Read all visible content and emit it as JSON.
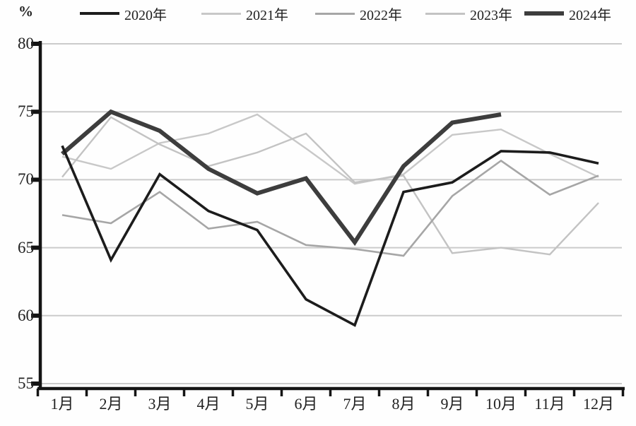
{
  "chart_data": {
    "type": "line",
    "title": "",
    "unit_label": "%",
    "xlabel": "",
    "ylabel": "%",
    "x_categories": [
      "1月",
      "2月",
      "3月",
      "4月",
      "5月",
      "6月",
      "7月",
      "8月",
      "9月",
      "10月",
      "11月",
      "12月"
    ],
    "y_ticks": [
      80,
      75,
      70,
      65,
      60,
      55
    ],
    "ylim": [
      55,
      80
    ],
    "grid": "horizontal",
    "legend_position": "top",
    "colors": {
      "axis": "#141414",
      "gridline": "#cbcbcb",
      "text": "#222222"
    },
    "series": [
      {
        "name": "2020年",
        "color": "#1c1c1c",
        "values": [
          72.5,
          64.1,
          70.4,
          67.7,
          66.3,
          61.2,
          59.3,
          69.1,
          69.8,
          72.1,
          72.0,
          71.2
        ]
      },
      {
        "name": "2021年",
        "color": "#c8c8c8",
        "values": [
          71.7,
          70.8,
          72.7,
          73.4,
          74.8,
          72.3,
          69.7,
          70.4,
          73.3,
          73.7,
          71.9,
          70.2
        ]
      },
      {
        "name": "2022年",
        "color": "#a6a6a6",
        "values": [
          67.4,
          66.8,
          69.1,
          66.4,
          66.9,
          65.2,
          64.9,
          64.4,
          68.8,
          71.4,
          68.9,
          70.3
        ]
      },
      {
        "name": "2023年",
        "color": "#c3c3c3",
        "values": [
          70.2,
          74.6,
          72.6,
          71.0,
          72.0,
          73.4,
          69.8,
          70.3,
          64.6,
          65.0,
          64.5,
          68.3
        ]
      },
      {
        "name": "2024年",
        "color": "#3d3d3d",
        "values": [
          71.9,
          75.0,
          73.6,
          70.8,
          69.0,
          70.1,
          65.4,
          71.0,
          74.2,
          74.8
        ]
      }
    ]
  }
}
